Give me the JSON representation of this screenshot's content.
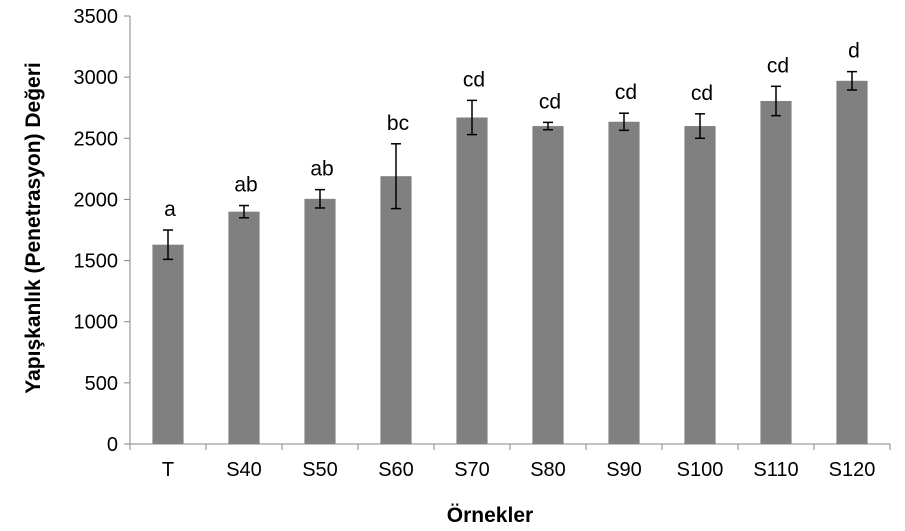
{
  "chart_data": {
    "type": "bar",
    "title": "",
    "xlabel": "Örnekler",
    "ylabel": "Yapışkanlık (Penetrasyon) Değeri",
    "ylim": [
      0,
      3500
    ],
    "yticks": [
      0,
      500,
      1000,
      1500,
      2000,
      2500,
      3000,
      3500
    ],
    "grid": false,
    "legend": "none",
    "bar_color": "#808080",
    "categories": [
      "T",
      "S40",
      "S50",
      "S60",
      "S70",
      "S80",
      "S90",
      "S100",
      "S110",
      "S120"
    ],
    "values": [
      1630,
      1900,
      2005,
      2190,
      2670,
      2600,
      2635,
      2600,
      2805,
      2970
    ],
    "error": [
      120,
      50,
      75,
      265,
      140,
      30,
      70,
      100,
      120,
      75
    ],
    "labels": [
      "a",
      "ab",
      "ab",
      "bc",
      "cd",
      "cd",
      "cd",
      "cd",
      "cd",
      "d"
    ]
  }
}
